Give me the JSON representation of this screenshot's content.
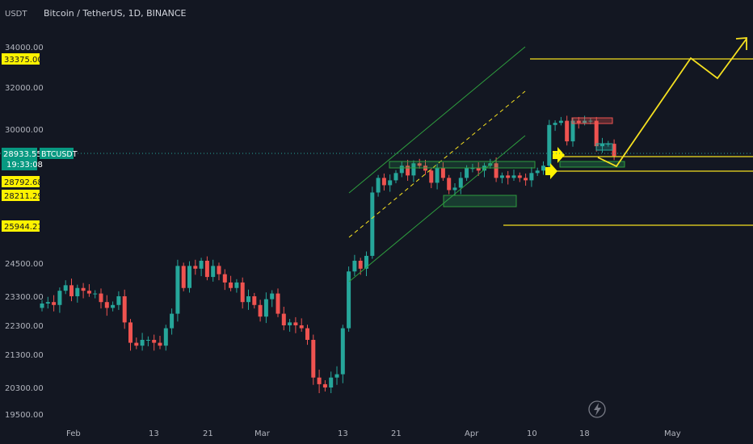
{
  "header": {
    "unit_label": "USDT",
    "symbol_title": "Bitcoin / TetherUS, 1D, BINANCE"
  },
  "axis": {
    "y_ticks": [
      34000,
      32000,
      30000,
      24500,
      23300,
      22300,
      21300,
      20300,
      19500
    ],
    "y_tick_labels": [
      "34000.00",
      "32000.00",
      "30000.00",
      "24500.00",
      "23300.00",
      "22300.00",
      "21300.00",
      "20300.00",
      "19500.00"
    ],
    "x_tick_labels": [
      "Feb",
      "13",
      "21",
      "Mar",
      "13",
      "21",
      "Apr",
      "10",
      "18",
      "May"
    ]
  },
  "badges": {
    "price_33375": "33375.00",
    "current_price": "28933.55",
    "symbol_tag": "BTCUSDT",
    "countdown": "19:33:08",
    "price_28792": "28792.68",
    "price_28211": "28211.29",
    "price_25944": "25944.21"
  },
  "colors": {
    "background": "#131722",
    "up": "#26a69a",
    "down": "#ef5350",
    "annotation_yellow": "#f5e020",
    "channel_green": "#2e9e3e",
    "badge_yellow": "#fff200",
    "badge_teal": "#089981"
  },
  "icons": {
    "bolt": "lightning-icon"
  },
  "chart_data": {
    "type": "candlestick",
    "title": "Bitcoin / TetherUS, 1D, BINANCE",
    "ylabel": "USDT",
    "ylim": [
      19200,
      35200
    ],
    "y_scale": "nonlinear",
    "grid": false,
    "current_price": 28933.55,
    "levels": [
      33375.0,
      28792.68,
      28211.29,
      25944.21
    ],
    "ohlc_close": [
      23050,
      23100,
      23000,
      23500,
      23700,
      23300,
      23600,
      23500,
      23400,
      23400,
      23100,
      22900,
      23000,
      23300,
      22400,
      21700,
      21600,
      21800,
      21800,
      21700,
      21600,
      22200,
      22700,
      24400,
      23600,
      24400,
      24300,
      24600,
      24000,
      24400,
      24100,
      23800,
      23600,
      23800,
      23100,
      23300,
      23000,
      22600,
      23200,
      23400,
      22700,
      22300,
      22400,
      22300,
      22200,
      21800,
      20600,
      20400,
      20300,
      20600,
      20700,
      22200,
      24200,
      24600,
      24300,
      24800,
      27400,
      28000,
      27700,
      27900,
      28200,
      28500,
      28100,
      28600,
      28500,
      28300,
      27800,
      28400,
      28000,
      27500,
      27600,
      28000,
      28400,
      28400,
      28300,
      28500,
      28600,
      28000,
      28100,
      28000,
      28100,
      28000,
      27900,
      28200,
      28300,
      28500,
      30200,
      30300,
      30400,
      29500,
      30400,
      30300,
      30400,
      30400,
      29300,
      29400,
      29400,
      28900
    ]
  }
}
